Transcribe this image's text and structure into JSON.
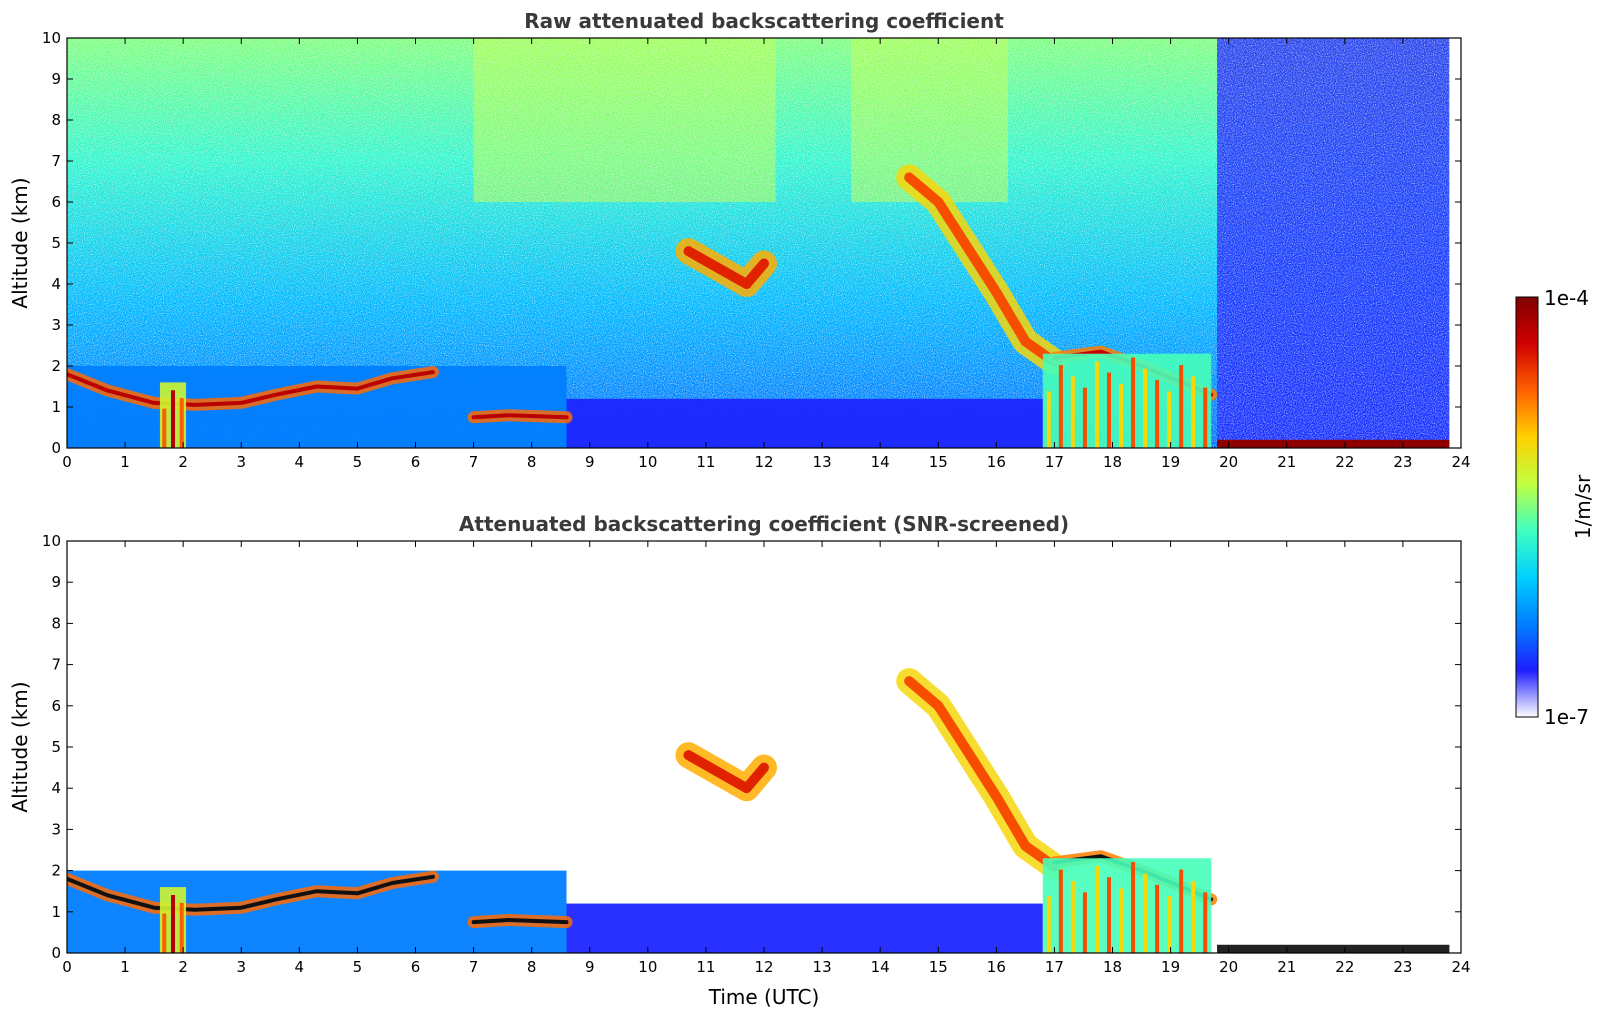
{
  "chart_data": [
    {
      "type": "heatmap",
      "title": "Raw attenuated backscattering coefficient",
      "xlabel": "",
      "ylabel": "Altitude (km)",
      "xlim": [
        0,
        24
      ],
      "ylim": [
        0,
        10
      ],
      "xticks": [
        "0",
        "1",
        "2",
        "3",
        "4",
        "5",
        "6",
        "7",
        "8",
        "9",
        "10",
        "11",
        "12",
        "13",
        "14",
        "15",
        "16",
        "17",
        "18",
        "19",
        "20",
        "21",
        "22",
        "23",
        "24"
      ],
      "yticks": [
        "0",
        "1",
        "2",
        "3",
        "4",
        "5",
        "6",
        "7",
        "8",
        "9",
        "10"
      ],
      "features": [
        {
          "kind": "boundary-layer",
          "x": [
            0,
            8.6
          ],
          "y": [
            0,
            2.0
          ],
          "level": 0.22
        },
        {
          "kind": "boundary-layer",
          "x": [
            8.6,
            16.8
          ],
          "y": [
            0,
            1.2
          ],
          "level": 0.12
        },
        {
          "kind": "cloud-layer",
          "points": [
            [
              0,
              1.8
            ],
            [
              0.7,
              1.4
            ],
            [
              1.5,
              1.1
            ],
            [
              2.2,
              1.05
            ],
            [
              3,
              1.1
            ],
            [
              3.6,
              1.3
            ],
            [
              4.3,
              1.5
            ],
            [
              5,
              1.45
            ],
            [
              5.6,
              1.7
            ],
            [
              6.3,
              1.85
            ]
          ],
          "level": 0.92
        },
        {
          "kind": "cloud-layer",
          "points": [
            [
              7,
              0.75
            ],
            [
              7.6,
              0.8
            ],
            [
              8.6,
              0.75
            ]
          ],
          "level": 0.92
        },
        {
          "kind": "precipitation",
          "x": [
            1.6,
            2.05
          ],
          "y": [
            0,
            1.6
          ],
          "level": 0.88
        },
        {
          "kind": "ice-cloud",
          "points": [
            [
              10.7,
              4.8
            ],
            [
              11.2,
              4.4
            ],
            [
              11.7,
              4.0
            ],
            [
              12.0,
              4.5
            ]
          ],
          "level": 0.85
        },
        {
          "kind": "ice-cloud",
          "points": [
            [
              14.5,
              6.6
            ],
            [
              15.0,
              6.0
            ],
            [
              15.5,
              4.9
            ],
            [
              16.0,
              3.8
            ],
            [
              16.5,
              2.6
            ],
            [
              17.0,
              2.1
            ]
          ],
          "level": 0.8
        },
        {
          "kind": "cloud-layer",
          "points": [
            [
              17,
              2.2
            ],
            [
              17.8,
              2.35
            ],
            [
              18.5,
              2.0
            ],
            [
              19.2,
              1.6
            ],
            [
              19.7,
              1.3
            ]
          ],
          "level": 0.9
        },
        {
          "kind": "precipitation",
          "x": [
            16.8,
            19.7
          ],
          "y": [
            0,
            2.3
          ],
          "level": 0.75
        },
        {
          "kind": "surface-fog",
          "x": [
            19.8,
            23.8
          ],
          "y": [
            0,
            0.2
          ],
          "level": 0.98
        }
      ]
    },
    {
      "type": "heatmap",
      "title": "Attenuated backscattering coefficient (SNR-screened)",
      "xlabel": "Time (UTC)",
      "ylabel": "Altitude (km)",
      "xlim": [
        0,
        24
      ],
      "ylim": [
        0,
        10
      ],
      "xticks": [
        "0",
        "1",
        "2",
        "3",
        "4",
        "5",
        "6",
        "7",
        "8",
        "9",
        "10",
        "11",
        "12",
        "13",
        "14",
        "15",
        "16",
        "17",
        "18",
        "19",
        "20",
        "21",
        "22",
        "23",
        "24"
      ],
      "yticks": [
        "0",
        "1",
        "2",
        "3",
        "4",
        "5",
        "6",
        "7",
        "8",
        "9",
        "10"
      ]
    }
  ],
  "colorbar": {
    "label": "1/m/sr",
    "max_label": "1e-4",
    "min_label": "1e-7",
    "colormap": [
      "#ffffff",
      "#1e1eff",
      "#0080ff",
      "#00d0ff",
      "#40ffc0",
      "#c0ff40",
      "#ffd000",
      "#ff6000",
      "#d00000",
      "#800000"
    ]
  }
}
